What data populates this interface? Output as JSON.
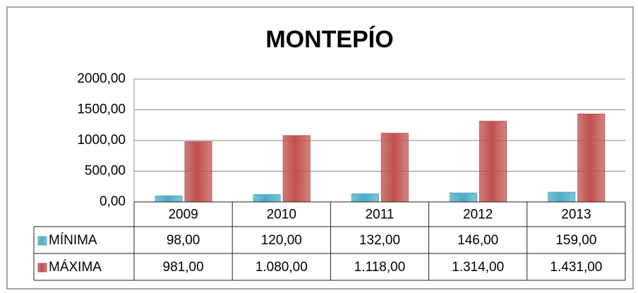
{
  "chart_data": {
    "type": "bar",
    "title": "MONTEPÍO",
    "categories": [
      "2009",
      "2010",
      "2011",
      "2012",
      "2013"
    ],
    "series": [
      {
        "name": "MÍNIMA",
        "color": "#4bacc6",
        "values": [
          98,
          120,
          132,
          146,
          159
        ],
        "value_labels": [
          "98,00",
          "120,00",
          "132,00",
          "146,00",
          "159,00"
        ]
      },
      {
        "name": "MÁXIMA",
        "color": "#c0504d",
        "values": [
          981,
          1080,
          1118,
          1314,
          1431
        ],
        "value_labels": [
          "981,00",
          "1.080,00",
          "1.118,00",
          "1.314,00",
          "1.431,00"
        ]
      }
    ],
    "ylim": [
      0,
      2000
    ],
    "yticks": [
      {
        "value": 0,
        "label": "0,00"
      },
      {
        "value": 500,
        "label": "500,00"
      },
      {
        "value": 1000,
        "label": "1000,00"
      },
      {
        "value": 1500,
        "label": "1500,00"
      },
      {
        "value": 2000,
        "label": "2000,00"
      }
    ],
    "grid": true,
    "legend": "table"
  }
}
